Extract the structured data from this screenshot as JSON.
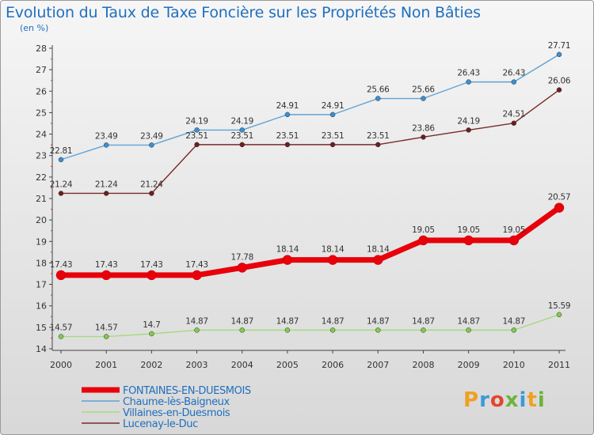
{
  "title": "Evolution du Taux de Taxe Foncière sur les Propriétés Non Bâties",
  "subtitle": "(en %)",
  "logo": {
    "text": "Proxiti",
    "letters": [
      {
        "ch": "P",
        "color": "#f0a020"
      },
      {
        "ch": "r",
        "color": "#3a9ad9"
      },
      {
        "ch": "o",
        "color": "#e2472f"
      },
      {
        "ch": "x",
        "color": "#6cb33e"
      },
      {
        "ch": "i",
        "color": "#3a9ad9"
      },
      {
        "ch": "t",
        "color": "#f0a020"
      },
      {
        "ch": "i",
        "color": "#6cb33e"
      }
    ]
  },
  "chart_data": {
    "type": "line",
    "title": "Evolution du Taux de Taxe Foncière sur les Propriétés Non Bâties",
    "ylabel": "(en %)",
    "x": [
      "2000",
      "2001",
      "2002",
      "2003",
      "2004",
      "2005",
      "2006",
      "2007",
      "2008",
      "2009",
      "2010",
      "2011"
    ],
    "ylim": [
      14,
      28
    ],
    "yticks": [
      14,
      15,
      16,
      17,
      18,
      19,
      20,
      21,
      22,
      23,
      24,
      25,
      26,
      27,
      28
    ],
    "grid": false,
    "legend_position": "bottom-left",
    "series": [
      {
        "name": "FONTAINES-EN-DUESMOIS",
        "color": "#e8000b",
        "values": [
          17.43,
          17.43,
          17.43,
          17.43,
          17.78,
          18.14,
          18.14,
          18.14,
          19.05,
          19.05,
          19.05,
          20.57
        ],
        "labels": [
          "17.43",
          "17.43",
          "17.43",
          "17.43",
          "17.78",
          "18.14",
          "18.14",
          "18.14",
          "19.05",
          "19.05",
          "19.05",
          "20.57"
        ]
      },
      {
        "name": "Chaume-lès-Baigneux",
        "color": "#5fa3d6",
        "values": [
          22.81,
          23.49,
          23.49,
          24.19,
          24.19,
          24.91,
          24.91,
          25.66,
          25.66,
          26.43,
          26.43,
          27.71
        ],
        "labels": [
          "22.81",
          "23.49",
          "23.49",
          "24.19",
          "24.19",
          "24.91",
          "24.91",
          "25.66",
          "25.66",
          "26.43",
          "26.43",
          "27.71"
        ]
      },
      {
        "name": "Villaines-en-Duesmois",
        "color": "#a7d982",
        "values": [
          14.57,
          14.57,
          14.7,
          14.87,
          14.87,
          14.87,
          14.87,
          14.87,
          14.87,
          14.87,
          14.87,
          15.59
        ],
        "labels": [
          "14.57",
          "14.57",
          "14.7",
          "14.87",
          "14.87",
          "14.87",
          "14.87",
          "14.87",
          "14.87",
          "14.87",
          "14.87",
          "15.59"
        ]
      },
      {
        "name": "Lucenay-le-Duc",
        "color": "#7a2a2a",
        "values": [
          21.24,
          21.24,
          21.24,
          23.51,
          23.51,
          23.51,
          23.51,
          23.51,
          23.86,
          24.19,
          24.51,
          26.06
        ],
        "labels": [
          "21.24",
          "21.24",
          "21.24",
          "23.51",
          "23.51",
          "23.51",
          "23.51",
          "23.51",
          "23.86",
          "24.19",
          "24.51",
          "26.06"
        ]
      }
    ]
  }
}
